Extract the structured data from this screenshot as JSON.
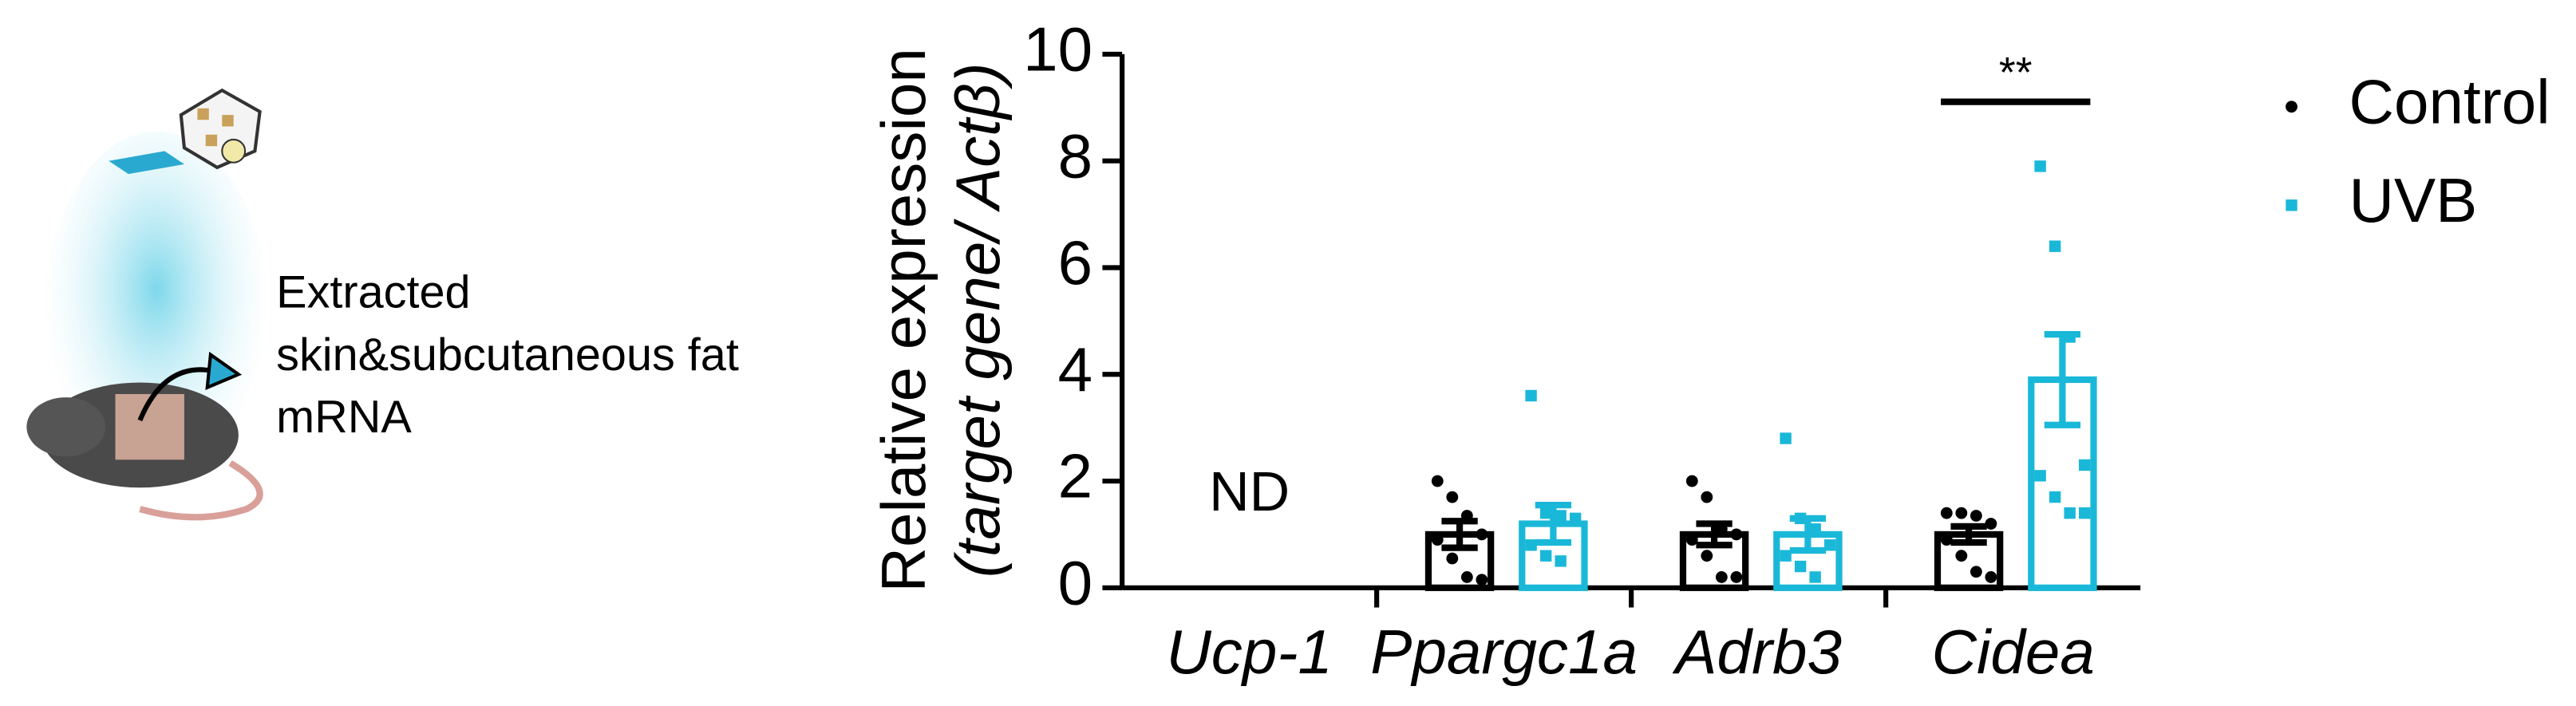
{
  "chart_data": {
    "type": "bar",
    "ylabel": [
      "Relative expression",
      "(target gene/ Actβ)"
    ],
    "categories": [
      "Ucp-1",
      "Ppargc1a",
      "Adrb3",
      "Cidea"
    ],
    "series": [
      {
        "name": "Control",
        "color": "#000000",
        "values": [
          null,
          1.0,
          1.0,
          1.0
        ],
        "errors": [
          null,
          0.25,
          0.2,
          0.15
        ],
        "points": [
          [],
          [
            2.0,
            1.7,
            1.35,
            1.0,
            0.9,
            0.55,
            0.2,
            0.15
          ],
          [
            2.0,
            1.7,
            1.1,
            1.0,
            0.9,
            0.6,
            0.2,
            0.2
          ],
          [
            1.4,
            1.4,
            1.35,
            1.2,
            0.9,
            0.6,
            0.3,
            0.2
          ]
        ]
      },
      {
        "name": "UVB",
        "color": "#1ab8d8",
        "values": [
          null,
          1.2,
          1.0,
          3.9
        ],
        "errors": [
          null,
          0.35,
          0.3,
          0.85
        ],
        "points": [
          [],
          [
            3.6,
            1.4,
            1.35,
            1.3,
            0.8,
            0.6,
            0.5
          ],
          [
            2.8,
            1.3,
            1.1,
            0.8,
            0.6,
            0.4,
            0.2
          ],
          [
            7.9,
            6.4,
            4.7,
            2.3,
            2.1,
            1.7,
            1.4,
            1.4
          ]
        ]
      }
    ],
    "ylim": [
      0,
      10
    ],
    "yticks": [
      0,
      2,
      4,
      6,
      8,
      10
    ],
    "annotations": [
      "ND",
      "**"
    ],
    "side_text": [
      "Extracted",
      "skin&subcutaneous fat",
      "mRNA"
    ]
  }
}
